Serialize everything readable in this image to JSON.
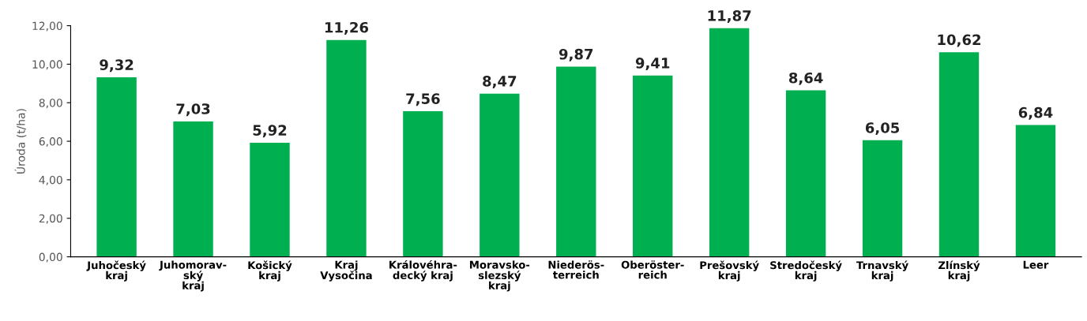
{
  "chart_data": {
    "type": "bar",
    "ylabel": "Úroda (t/ha)",
    "categories": [
      "Juhočeský\nkraj",
      "Juhomorav-\nský\nkraj",
      "Košický\nkraj",
      "Kraj\nVysočina",
      "Královéhra-\ndecký kraj",
      "Moravsko-\nslezský\nkraj",
      "Niederös-\nterreich",
      "Oberöster-\nreich",
      "Prešovský\nkraj",
      "Stredočeský\nkraj",
      "Trnavský\nkraj",
      "Zlínský\nkraj",
      "Leer"
    ],
    "values": [
      9.32,
      7.03,
      5.92,
      11.26,
      7.56,
      8.47,
      9.87,
      9.41,
      11.87,
      8.64,
      6.05,
      10.62,
      6.84
    ],
    "value_labels": [
      "9,32",
      "7,03",
      "5,92",
      "11,26",
      "7,56",
      "8,47",
      "9,87",
      "9,41",
      "11,87",
      "8,64",
      "6,05",
      "10,62",
      "6,84"
    ],
    "color": "#00b050",
    "ylim": [
      0,
      12
    ],
    "yticks": [
      {
        "value": 0,
        "label": "0,00"
      },
      {
        "value": 2,
        "label": "2,00"
      },
      {
        "value": 4,
        "label": "4,00"
      },
      {
        "value": 6,
        "label": "6,00"
      },
      {
        "value": 8,
        "label": "8,00"
      },
      {
        "value": 10,
        "label": "10,00"
      },
      {
        "value": 12,
        "label": "12,00"
      }
    ],
    "grid": false,
    "legend": false
  }
}
